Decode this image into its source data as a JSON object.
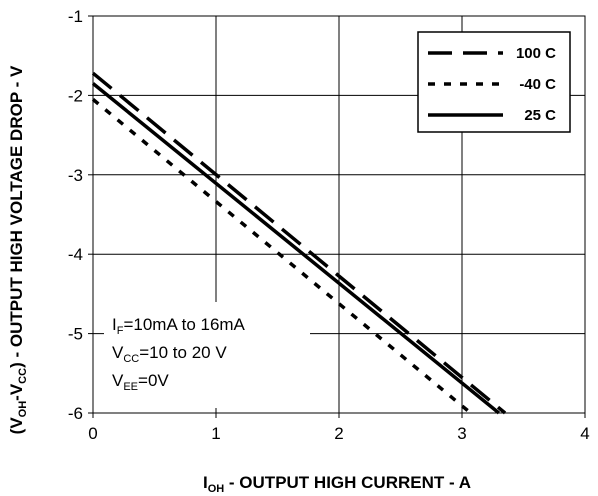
{
  "chart_data": {
    "type": "line",
    "title": "",
    "xlabel": {
      "main": "I",
      "sub": "OH",
      "rest": " - OUTPUT HIGH CURRENT - A"
    },
    "ylabel": {
      "p1": "(V",
      "s1": "OH",
      "p2": "-V",
      "s2": "CC",
      "p3": ") - OUTPUT HIGH VOLTAGE DROP - V"
    },
    "xlim": [
      0,
      4
    ],
    "ylim": [
      -6,
      -1
    ],
    "xticks": [
      "0",
      "1",
      "2",
      "3",
      "4"
    ],
    "yticks": [
      "-1",
      "-2",
      "-3",
      "-4",
      "-5",
      "-6"
    ],
    "grid": true,
    "legend_position": "top-right",
    "series": [
      {
        "name": "100 C",
        "style": "long-dash",
        "x": [
          0,
          3.35
        ],
        "y": [
          -1.72,
          -6.0
        ]
      },
      {
        "name": "-40 C",
        "style": "short-dash",
        "x": [
          0,
          3.07
        ],
        "y": [
          -2.05,
          -6.0
        ]
      },
      {
        "name": "25 C",
        "style": "solid",
        "x": [
          0,
          3.3
        ],
        "y": [
          -1.85,
          -6.0
        ]
      }
    ],
    "annotation": [
      {
        "main": "I",
        "sub": "F",
        "rest": "=10mA to 16mA"
      },
      {
        "main": "V",
        "sub": "CC",
        "rest": "=10 to 20 V"
      },
      {
        "main": "V",
        "sub": "EE",
        "rest": "=0V"
      }
    ]
  }
}
